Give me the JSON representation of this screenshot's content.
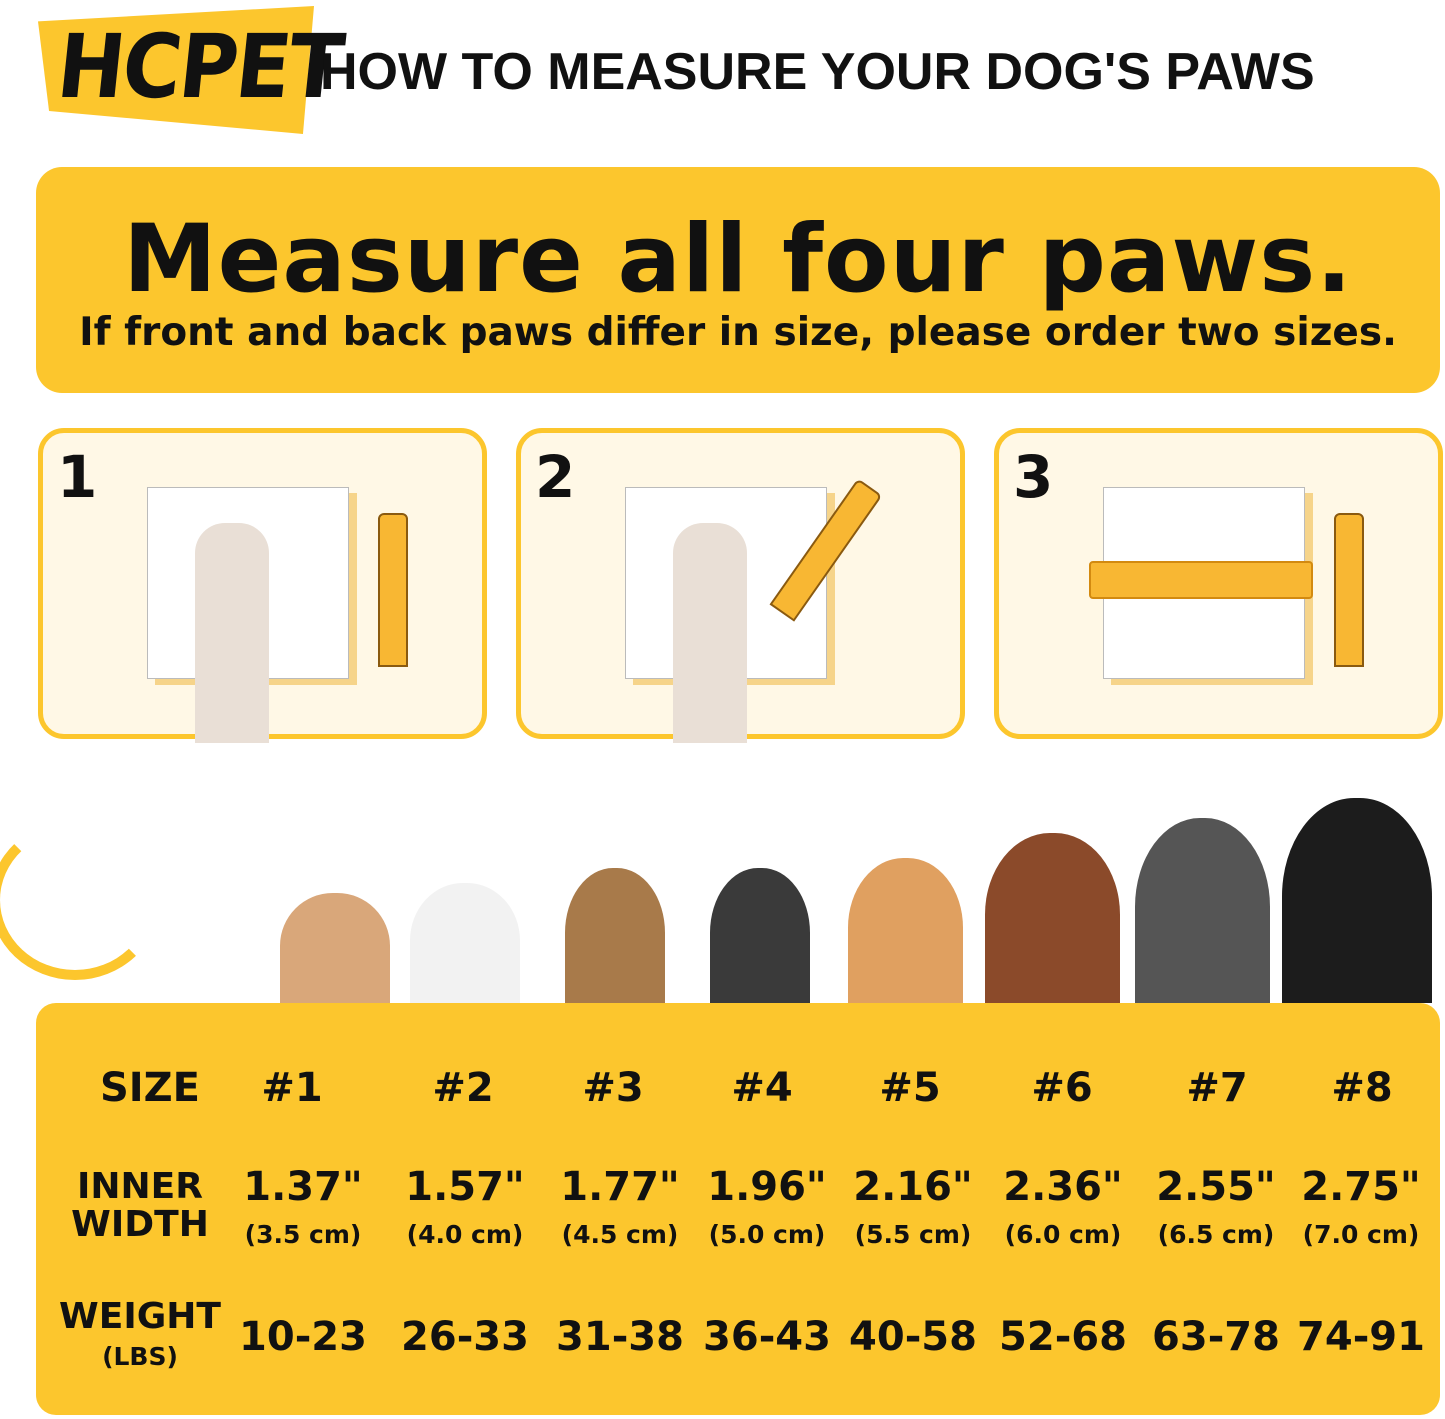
{
  "header": {
    "logo": "HCPET",
    "title": "HOW TO MEASURE YOUR DOG'S PAWS"
  },
  "banner": {
    "headline": "Measure all four paws.",
    "subtitle": "If front and back paws differ in size, please order two sizes."
  },
  "steps": [
    {
      "number": "1"
    },
    {
      "number": "2"
    },
    {
      "number": "3"
    }
  ],
  "colors": {
    "accent": "#FCC62D",
    "panel": "#FFF8E6"
  },
  "table": {
    "size_label": "SIZE",
    "width_label_1": "INNER",
    "width_label_2": "WIDTH",
    "weight_label": "WEIGHT",
    "weight_unit": "(LBS)",
    "sizes": [
      "#1",
      "#2",
      "#3",
      "#4",
      "#5",
      "#6",
      "#7",
      "#8"
    ],
    "widths_in": [
      "1.37\"",
      "1.57\"",
      "1.77\"",
      "1.96\"",
      "2.16\"",
      "2.36\"",
      "2.55\"",
      "2.75\""
    ],
    "widths_cm": [
      "(3.5 cm)",
      "(4.0 cm)",
      "(4.5 cm)",
      "(5.0 cm)",
      "(5.5 cm)",
      "(6.0 cm)",
      "(6.5 cm)",
      "(7.0 cm)"
    ],
    "weights": [
      "10-23",
      "26-33",
      "31-38",
      "36-43",
      "40-58",
      "52-68",
      "63-78",
      "74-91"
    ]
  }
}
